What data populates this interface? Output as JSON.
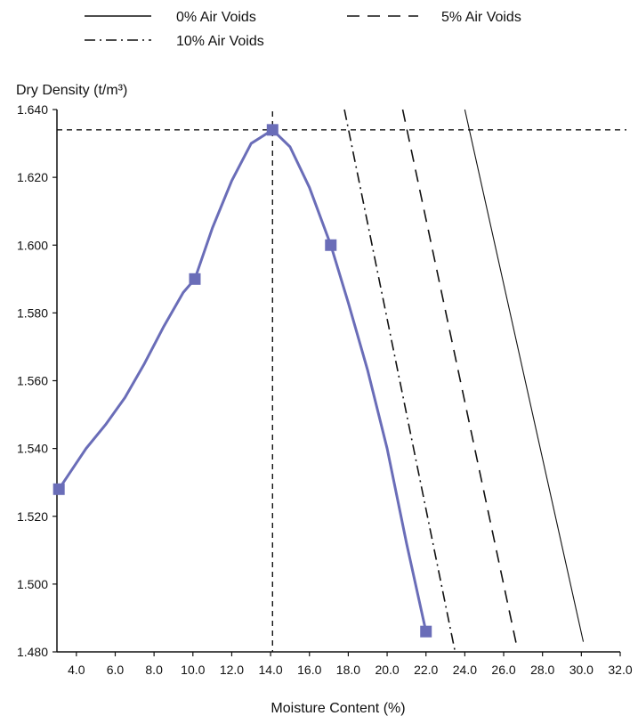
{
  "chart_data": {
    "type": "line",
    "title": "",
    "ylabel": "Dry Density (t/m³)",
    "xlabel": "Moisture Content (%)",
    "xlim": [
      3.0,
      32.0
    ],
    "ylim": [
      1.48,
      1.64
    ],
    "x_ticks": [
      "4.0",
      "6.0",
      "8.0",
      "10.0",
      "12.0",
      "14.0",
      "16.0",
      "18.0",
      "20.0",
      "22.0",
      "24.0",
      "26.0",
      "28.0",
      "30.0",
      "32.0"
    ],
    "x_tick_values": [
      4,
      6,
      8,
      10,
      12,
      14,
      16,
      18,
      20,
      22,
      24,
      26,
      28,
      30,
      32
    ],
    "y_ticks": [
      "1.480",
      "1.500",
      "1.520",
      "1.540",
      "1.560",
      "1.580",
      "1.600",
      "1.620",
      "1.640"
    ],
    "y_tick_values": [
      1.48,
      1.5,
      1.52,
      1.54,
      1.56,
      1.58,
      1.6,
      1.62,
      1.64
    ],
    "legend": {
      "placement": "top",
      "entries": [
        {
          "label": "0% Air Voids",
          "style": "solid"
        },
        {
          "label": "5% Air Voids",
          "style": "dashed"
        },
        {
          "label": "10% Air Voids",
          "style": "dashdot"
        }
      ]
    },
    "compaction_points": {
      "x": [
        3.1,
        10.1,
        14.1,
        17.1,
        22.0
      ],
      "y": [
        1.528,
        1.59,
        1.634,
        1.6,
        1.486
      ],
      "color": "#6a6db8"
    },
    "compaction_curve": {
      "x": [
        3.1,
        3.8,
        4.5,
        5.5,
        6.5,
        7.5,
        8.5,
        9.5,
        10.1,
        11.0,
        12.0,
        13.0,
        14.1,
        15.0,
        16.0,
        17.1,
        18.0,
        19.0,
        20.0,
        21.0,
        22.0
      ],
      "y": [
        1.528,
        1.534,
        1.54,
        1.547,
        1.555,
        1.565,
        1.576,
        1.586,
        1.59,
        1.605,
        1.619,
        1.63,
        1.634,
        1.629,
        1.617,
        1.6,
        1.583,
        1.563,
        1.54,
        1.512,
        1.486
      ]
    },
    "air_void_lines": [
      {
        "label": "0% Air Voids",
        "style": "solid",
        "x": [
          24.0,
          30.1
        ],
        "y": [
          1.64,
          1.483
        ]
      },
      {
        "label": "5% Air Voids",
        "style": "dashed",
        "x": [
          20.8,
          26.7
        ],
        "y": [
          1.64,
          1.481
        ]
      },
      {
        "label": "10% Air Voids",
        "style": "dashdot",
        "x": [
          17.8,
          23.5
        ],
        "y": [
          1.64,
          1.48
        ]
      }
    ],
    "reference_lines": {
      "max_dry_density": 1.634,
      "optimum_moisture": 14.1
    },
    "grid": false
  }
}
